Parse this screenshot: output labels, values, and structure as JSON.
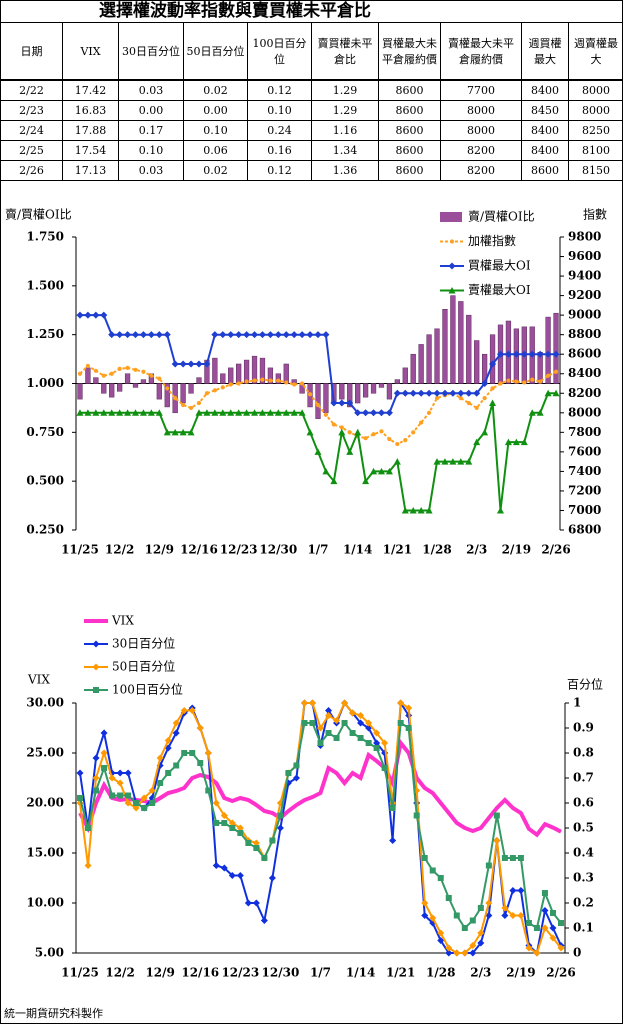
{
  "title": "選擇權波動率指數與賣買權未平倉比",
  "table": {
    "header": [
      "日期",
      "VIX",
      "30日百分位",
      "50日百分位",
      "100日百分位",
      "賣買權未平倉比",
      "買權最大未平倉履約價",
      "賣權最大未平倉履約價",
      "週買權最大",
      "週賣權最大"
    ],
    "rows": [
      [
        "2/22",
        "17.42",
        "0.03",
        "0.02",
        "0.12",
        "1.29",
        "8600",
        "7700",
        "8400",
        "8000"
      ],
      [
        "2/23",
        "16.83",
        "0.00",
        "0.00",
        "0.10",
        "1.29",
        "8600",
        "8000",
        "8450",
        "8000"
      ],
      [
        "2/24",
        "17.88",
        "0.17",
        "0.10",
        "0.24",
        "1.16",
        "8600",
        "8000",
        "8400",
        "8250"
      ],
      [
        "2/25",
        "17.54",
        "0.10",
        "0.06",
        "0.16",
        "1.34",
        "8600",
        "8200",
        "8400",
        "8100"
      ],
      [
        "2/26",
        "17.13",
        "0.03",
        "0.02",
        "0.12",
        "1.36",
        "8600",
        "8200",
        "8600",
        "8150"
      ]
    ]
  },
  "chart_data": [
    {
      "type": "combo",
      "ylabel": "賣/買權OI比",
      "y2label": "指數",
      "x_axis_at": 1,
      "categories": [
        "11/25",
        null,
        null,
        null,
        null,
        "12/2",
        null,
        null,
        null,
        null,
        "12/9",
        null,
        null,
        null,
        null,
        "12/16",
        null,
        null,
        null,
        null,
        "12/23",
        null,
        null,
        null,
        null,
        "12/30",
        null,
        null,
        null,
        null,
        "1/7",
        null,
        null,
        null,
        null,
        "1/14",
        null,
        null,
        null,
        null,
        "1/21",
        null,
        null,
        null,
        null,
        "1/28",
        null,
        null,
        null,
        null,
        "2/3",
        null,
        null,
        null,
        null,
        "2/19",
        null,
        null,
        null,
        null,
        "2/26"
      ],
      "ylim": [
        0.25,
        1.75
      ],
      "yticks": [
        {
          "value": 0.25,
          "label": "0.250"
        },
        {
          "value": 0.5,
          "label": "0.500"
        },
        {
          "value": 0.75,
          "label": "0.750"
        },
        {
          "value": 1,
          "label": "1.000"
        },
        {
          "value": 1.25,
          "label": "1.250"
        },
        {
          "value": 1.5,
          "label": "1.500"
        },
        {
          "value": 1.75,
          "label": "1.750"
        }
      ],
      "y2lim": [
        6800,
        9800
      ],
      "y2ticks": [
        6800,
        7000,
        7200,
        7400,
        7600,
        7800,
        8000,
        8200,
        8400,
        8600,
        8800,
        9000,
        9200,
        9400,
        9600,
        9800
      ],
      "series": [
        {
          "name": "賣/買權OI比",
          "type": "bar",
          "color": "#9b4f9b",
          "values": [
            0.92,
            1.08,
            1.03,
            0.95,
            0.93,
            0.96,
            1.05,
            0.98,
            1.02,
            1.05,
            0.92,
            0.88,
            0.85,
            0.9,
            0.95,
            1.03,
            1.12,
            1.13,
            1.05,
            1.08,
            1.1,
            1.12,
            1.14,
            1.13,
            1.08,
            1.05,
            1.1,
            1.02,
            0.95,
            0.88,
            0.82,
            0.85,
            0.9,
            0.92,
            0.88,
            0.9,
            0.93,
            0.95,
            0.98,
            0.92,
            1.02,
            1.08,
            1.15,
            1.2,
            1.25,
            1.28,
            1.38,
            1.45,
            1.42,
            1.35,
            1.22,
            1.15,
            1.25,
            1.3,
            1.32,
            1.28,
            1.29,
            1.29,
            1.16,
            1.34,
            1.36
          ]
        },
        {
          "name": "加權指數",
          "type": "line",
          "axis": "y2",
          "color": "#ffa020",
          "dashed": true,
          "marker": "circle",
          "values": [
            8400,
            8480,
            8430,
            8380,
            8400,
            8450,
            8460,
            8440,
            8420,
            8380,
            8350,
            8250,
            8150,
            8080,
            8050,
            8100,
            8200,
            8230,
            8260,
            8290,
            8300,
            8320,
            8330,
            8340,
            8330,
            8330,
            8310,
            8290,
            8300,
            8190,
            8080,
            7980,
            7880,
            7850,
            7800,
            7760,
            7740,
            7780,
            7810,
            7730,
            7680,
            7720,
            7800,
            7900,
            8000,
            8150,
            8180,
            8200,
            8150,
            8100,
            8050,
            8150,
            8250,
            8300,
            8330,
            8320,
            8310,
            8340,
            8320,
            8380,
            8420
          ]
        },
        {
          "name": "買權最大OI",
          "type": "line",
          "axis": "y2",
          "color": "#1f3fd0",
          "marker": "diamond",
          "values": [
            9000,
            9000,
            9000,
            9000,
            8800,
            8800,
            8800,
            8800,
            8800,
            8800,
            8800,
            8800,
            8500,
            8500,
            8500,
            8500,
            8500,
            8800,
            8800,
            8800,
            8800,
            8800,
            8800,
            8800,
            8800,
            8800,
            8800,
            8800,
            8800,
            8800,
            8800,
            8800,
            8100,
            8100,
            8100,
            8000,
            8000,
            8000,
            8000,
            8000,
            8200,
            8200,
            8200,
            8200,
            8200,
            8200,
            8200,
            8200,
            8200,
            8200,
            8200,
            8300,
            8500,
            8600,
            8600,
            8600,
            8600,
            8600,
            8600,
            8600,
            8600
          ]
        },
        {
          "name": "賣權最大OI",
          "type": "line",
          "axis": "y2",
          "color": "#109010",
          "marker": "triangle",
          "values": [
            8000,
            8000,
            8000,
            8000,
            8000,
            8000,
            8000,
            8000,
            8000,
            8000,
            8000,
            7800,
            7800,
            7800,
            7800,
            8000,
            8000,
            8000,
            8000,
            8000,
            8000,
            8000,
            8000,
            8000,
            8000,
            8000,
            8000,
            8000,
            8000,
            7800,
            7600,
            7400,
            7300,
            7800,
            7600,
            7800,
            7300,
            7400,
            7400,
            7400,
            7500,
            7000,
            7000,
            7000,
            7000,
            7500,
            7500,
            7500,
            7500,
            7500,
            7700,
            7800,
            8100,
            7000,
            7700,
            7700,
            7700,
            8000,
            8000,
            8200,
            8200
          ]
        }
      ]
    },
    {
      "type": "line",
      "ylabel": "VIX",
      "y2label": "百分位",
      "categories": [
        "11/25",
        null,
        null,
        null,
        null,
        "12/2",
        null,
        null,
        null,
        null,
        "12/9",
        null,
        null,
        null,
        null,
        "12/16",
        null,
        null,
        null,
        null,
        "12/23",
        null,
        null,
        null,
        null,
        "12/30",
        null,
        null,
        null,
        null,
        "1/7",
        null,
        null,
        null,
        null,
        "1/14",
        null,
        null,
        null,
        null,
        "1/21",
        null,
        null,
        null,
        null,
        "1/28",
        null,
        null,
        null,
        null,
        "2/3",
        null,
        null,
        null,
        null,
        "2/19",
        null,
        null,
        null,
        null,
        "2/26"
      ],
      "ylim": [
        5,
        30
      ],
      "yticks": [
        {
          "value": 5,
          "label": "5.00"
        },
        {
          "value": 10,
          "label": "10.00"
        },
        {
          "value": 15,
          "label": "15.00"
        },
        {
          "value": 20,
          "label": "20.00"
        },
        {
          "value": 25,
          "label": "25.00"
        },
        {
          "value": 30,
          "label": "30.00"
        }
      ],
      "y2lim": [
        0,
        1
      ],
      "y2ticks": [
        0,
        0.1,
        0.2,
        0.3,
        0.4,
        0.5,
        0.6,
        0.7,
        0.8,
        0.9,
        1
      ],
      "series": [
        {
          "name": "VIX",
          "color": "#ff33cc",
          "width": 4,
          "values": [
            19,
            17.5,
            20,
            21.8,
            20.5,
            20.3,
            20.4,
            20.3,
            20.2,
            20,
            20.5,
            21,
            21.2,
            21.5,
            22.5,
            22.8,
            22.6,
            22,
            20.5,
            20.2,
            20.5,
            20.3,
            19.8,
            19.2,
            19,
            18.5,
            19.2,
            19.8,
            20.3,
            20.6,
            21,
            23.5,
            23,
            22,
            23,
            22.5,
            24.8,
            24.2,
            23.5,
            22,
            26,
            25,
            22.5,
            21.5,
            21,
            20,
            19,
            18,
            17.5,
            17.2,
            17.5,
            18.5,
            19.5,
            20.3,
            19.5,
            19,
            17.42,
            16.83,
            17.88,
            17.54,
            17.13
          ]
        },
        {
          "name": "30日百分位",
          "axis": "y2",
          "color": "#1030e0",
          "marker": "diamond",
          "values": [
            0.72,
            0.5,
            0.78,
            0.88,
            0.72,
            0.72,
            0.72,
            0.6,
            0.58,
            0.62,
            0.75,
            0.82,
            0.88,
            0.96,
            0.98,
            0.9,
            0.8,
            0.35,
            0.34,
            0.31,
            0.31,
            0.2,
            0.2,
            0.13,
            0.3,
            0.5,
            0.68,
            0.7,
            1,
            1,
            0.83,
            0.97,
            0.92,
            1,
            0.96,
            0.92,
            0.9,
            0.84,
            0.8,
            0.45,
            1,
            0.95,
            0.6,
            0.15,
            0.12,
            0.05,
            0,
            0,
            0,
            0,
            0.04,
            0.15,
            0.45,
            0.15,
            0.25,
            0.25,
            0.03,
            0,
            0.17,
            0.1,
            0.03
          ]
        },
        {
          "name": "50日百分位",
          "axis": "y2",
          "color": "#ff9900",
          "marker": "diamond",
          "values": [
            0.6,
            0.35,
            0.7,
            0.8,
            0.7,
            0.68,
            0.6,
            0.58,
            0.62,
            0.65,
            0.78,
            0.85,
            0.92,
            0.97,
            0.97,
            0.9,
            0.8,
            0.6,
            0.55,
            0.52,
            0.5,
            0.45,
            0.44,
            0.38,
            0.45,
            0.6,
            0.72,
            0.75,
            1,
            1,
            0.9,
            0.95,
            0.93,
            1,
            0.96,
            0.95,
            0.92,
            0.88,
            0.84,
            0.6,
            1,
            0.98,
            0.65,
            0.2,
            0.14,
            0.08,
            0.02,
            0,
            0,
            0.03,
            0.08,
            0.2,
            0.45,
            0.18,
            0.15,
            0.15,
            0.02,
            0,
            0.1,
            0.06,
            0.02
          ]
        },
        {
          "name": "100日百分位",
          "axis": "y2",
          "color": "#339966",
          "marker": "square",
          "values": [
            0.62,
            0.5,
            0.65,
            0.74,
            0.63,
            0.63,
            0.63,
            0.6,
            0.58,
            0.6,
            0.68,
            0.72,
            0.75,
            0.8,
            0.8,
            0.76,
            0.65,
            0.52,
            0.52,
            0.5,
            0.48,
            0.44,
            0.42,
            0.38,
            0.45,
            0.55,
            0.72,
            0.75,
            0.92,
            0.92,
            0.84,
            0.88,
            0.86,
            0.92,
            0.88,
            0.86,
            0.84,
            0.82,
            0.74,
            0.58,
            0.92,
            0.9,
            0.55,
            0.38,
            0.33,
            0.3,
            0.22,
            0.15,
            0.1,
            0.13,
            0.18,
            0.35,
            0.55,
            0.38,
            0.38,
            0.38,
            0.12,
            0.1,
            0.24,
            0.16,
            0.12
          ]
        }
      ]
    }
  ],
  "footer": "統一期貨研究科製作"
}
